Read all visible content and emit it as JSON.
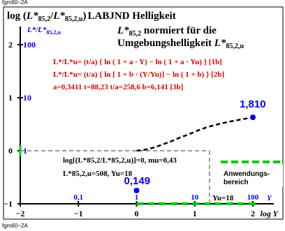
{
  "figure_id_top": "fgm60−2A",
  "figure_id_bottom": "fgm60−2A",
  "colors": {
    "black": "#000000",
    "red": "#e00000",
    "blue": "#0000ff",
    "green": "#00cc00",
    "grey": "#999999",
    "frame": "#000000"
  },
  "chart_data": {
    "type": "line",
    "title_line1": "log (L*85,2/L*85,2,u) LABJND Helligkeit",
    "title_parts": {
      "log": "log (",
      "L1": "L*",
      "sub1": "85,2",
      "slash": "/",
      "L2": "L*",
      "sub2": "85,2,u",
      "close": ")",
      "name": "LABJND Helligkeit"
    },
    "subtitle_line2_main": "L*",
    "subtitle_line2_sub": "85,2",
    "subtitle_line2_rest": " normiert für die",
    "subtitle_line3_main": "Umgebungshelligkeit ",
    "subtitle_line3_L": "L*",
    "subtitle_line3_sub": "85,2,u",
    "secondary_axis_label_main": "L*/L*",
    "secondary_axis_label_sub": "85,2,u",
    "formula1": "L*/L*u= (t/a) { ln ( 1 + a · Y) − ln ( 1 + a · Yu) }   [1b]",
    "formula2": "L*/L*u= (t/a) { ln [ 1 + b · (Y/Yu)] − ln ( 1 + b) }   [2b]",
    "params": "a=0,3411   t=88,23   t/a=258,6   b=6,141   [3b]",
    "annotation_log": "log[(L*85,2/L*85,2,u)]=0, mu=0,43",
    "annotation_L": "L*85,2,u=508, Yu=18",
    "legend_label_1": "Anwendungs-",
    "legend_label_2": "bereich",
    "point_label_high": "1,810",
    "point_label_low": "0,149",
    "yu_label": "Yu=18",
    "x_axis_label": "log Y",
    "x_ticks": [
      "−2",
      "−1",
      "0",
      "1",
      "2"
    ],
    "y_ticks": [
      "−1",
      "0",
      "1",
      "2"
    ],
    "y_secondary_ticks": [
      "1",
      "10",
      "100"
    ],
    "x_secondary_ticks": [
      "0,1",
      "1",
      "10",
      "100"
    ],
    "x_secondary_unit": "Y",
    "xlim": [
      -2,
      2.3
    ],
    "ylim": [
      -1,
      2.3
    ],
    "curve": [
      {
        "x": 0.0,
        "y": 0.0
      },
      {
        "x": 0.15,
        "y": 0.02
      },
      {
        "x": 0.3,
        "y": 0.06
      },
      {
        "x": 0.45,
        "y": 0.12
      },
      {
        "x": 0.6,
        "y": 0.18
      },
      {
        "x": 0.75,
        "y": 0.25
      },
      {
        "x": 0.9,
        "y": 0.31
      },
      {
        "x": 1.05,
        "y": 0.38
      },
      {
        "x": 1.2,
        "y": 0.44
      },
      {
        "x": 1.4,
        "y": 0.5
      },
      {
        "x": 1.6,
        "y": 0.55
      },
      {
        "x": 1.8,
        "y": 0.59
      },
      {
        "x": 2.0,
        "y": 0.63
      }
    ],
    "point_high": {
      "x": 2.0,
      "y": 0.63
    },
    "point_low": {
      "x": 0.0,
      "y": -0.75
    },
    "ref_x": 1.255,
    "ref_y": 0.0
  }
}
